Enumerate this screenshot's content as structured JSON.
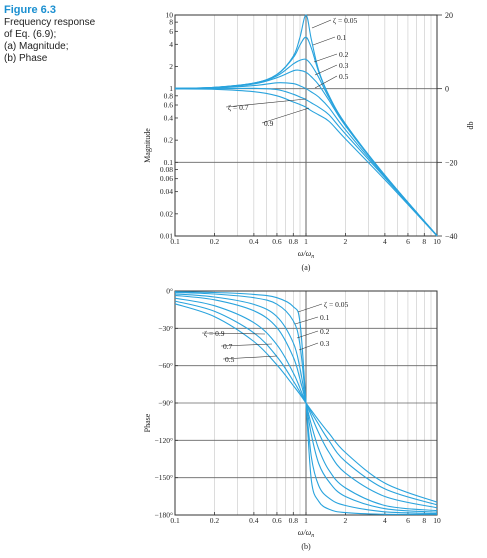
{
  "caption": {
    "figure": "Figure 6.3",
    "lines": [
      "Frequency response",
      "of Eq. (6.9);",
      "(a) Magnitude;",
      "(b) Phase"
    ]
  },
  "colors": {
    "curve": "#29a3dd",
    "grid": "#666666",
    "caption": "#1a8fd0"
  },
  "chart_data": [
    {
      "id": "a",
      "type": "line",
      "panel_label": "(a)",
      "xlabel": "ω/ωn",
      "ylabel": "Magnitude",
      "y2label": "db",
      "xscale": "log",
      "yscale": "log",
      "xlim": [
        0.1,
        10
      ],
      "ylim": [
        0.01,
        10
      ],
      "y2lim": [
        -40,
        20
      ],
      "x_ticks": [
        0.1,
        0.2,
        0.4,
        0.6,
        0.8,
        1,
        2,
        4,
        6,
        8,
        10
      ],
      "x_tick_labels": [
        "0.1",
        "0.2",
        "0.4",
        "0.6",
        "0.8",
        "1",
        "2",
        "4",
        "6",
        "8",
        "10"
      ],
      "y_ticks": [
        0.01,
        0.02,
        0.04,
        0.06,
        0.08,
        0.1,
        0.2,
        0.4,
        0.6,
        0.8,
        1,
        2,
        4,
        6,
        8,
        10
      ],
      "y_tick_labels": [
        "0.01",
        "0.02",
        "0.04",
        "0.06",
        "0.08",
        "0.1",
        "0.2",
        "0.4",
        "0.6",
        "0.8",
        "1",
        "2",
        "4",
        "6",
        "8",
        "10"
      ],
      "y2_ticks": [
        -40,
        -20,
        0,
        20
      ],
      "y2_tick_labels": [
        "−40",
        "−20",
        "0",
        "20"
      ],
      "zeta": [
        0.05,
        0.1,
        0.2,
        0.3,
        0.5,
        0.7,
        0.9
      ],
      "annotations": [
        {
          "text": "ζ = 0.05",
          "zeta": 0.05
        },
        {
          "text": "0.1",
          "zeta": 0.1
        },
        {
          "text": "0.2",
          "zeta": 0.2
        },
        {
          "text": "0.3",
          "zeta": 0.3
        },
        {
          "text": "0.5",
          "zeta": 0.5
        },
        {
          "text": "ζ = 0.7",
          "zeta": 0.7
        },
        {
          "text": "0.9",
          "zeta": 0.9
        }
      ],
      "series": [
        {
          "zeta": 0.05,
          "x": [
            0.1,
            0.2,
            0.4,
            0.6,
            0.8,
            0.9,
            1,
            1.1,
            1.25,
            1.5,
            2,
            4,
            10
          ],
          "y": [
            1.01,
            1.04,
            1.19,
            1.56,
            2.76,
            5.0,
            10.0,
            4.6,
            1.77,
            0.8,
            0.333,
            0.067,
            0.0101
          ]
        },
        {
          "zeta": 0.1,
          "x": [
            0.1,
            0.2,
            0.4,
            0.6,
            0.8,
            0.9,
            1,
            1.1,
            1.25,
            1.5,
            2,
            4,
            10
          ],
          "y": [
            1.01,
            1.04,
            1.19,
            1.55,
            2.64,
            3.91,
            5.0,
            3.53,
            1.69,
            0.79,
            0.331,
            0.066,
            0.0101
          ]
        },
        {
          "zeta": 0.2,
          "x": [
            0.1,
            0.2,
            0.4,
            0.6,
            0.8,
            0.9,
            1,
            1.1,
            1.25,
            1.5,
            2,
            4,
            10
          ],
          "y": [
            1.01,
            1.04,
            1.18,
            1.49,
            2.17,
            2.43,
            2.5,
            2.09,
            1.42,
            0.75,
            0.324,
            0.066,
            0.0101
          ]
        },
        {
          "zeta": 0.3,
          "x": [
            0.1,
            0.2,
            0.4,
            0.6,
            0.8,
            0.9,
            1,
            1.1,
            1.25,
            1.5,
            2,
            4,
            10
          ],
          "y": [
            1.01,
            1.04,
            1.16,
            1.41,
            1.75,
            1.77,
            1.67,
            1.45,
            1.13,
            0.69,
            0.313,
            0.066,
            0.0101
          ]
        },
        {
          "zeta": 0.5,
          "x": [
            0.1,
            0.2,
            0.4,
            0.6,
            0.8,
            0.9,
            1,
            1.1,
            1.25,
            1.5,
            2,
            4,
            10
          ],
          "y": [
            1.0,
            1.02,
            1.1,
            1.2,
            1.17,
            1.09,
            1.0,
            0.9,
            0.77,
            0.55,
            0.277,
            0.064,
            0.0101
          ]
        },
        {
          "zeta": 0.7,
          "x": [
            0.1,
            0.2,
            0.4,
            0.6,
            0.8,
            0.9,
            1,
            1.1,
            1.25,
            1.5,
            2,
            4,
            10
          ],
          "y": [
            1.0,
            1.0,
            1.01,
            0.97,
            0.84,
            0.77,
            0.71,
            0.64,
            0.56,
            0.44,
            0.243,
            0.062,
            0.01
          ]
        },
        {
          "zeta": 0.9,
          "x": [
            0.1,
            0.2,
            0.4,
            0.6,
            0.8,
            0.9,
            1,
            1.1,
            1.25,
            1.5,
            2,
            4,
            10
          ],
          "y": [
            0.99,
            0.98,
            0.91,
            0.8,
            0.66,
            0.61,
            0.56,
            0.5,
            0.44,
            0.36,
            0.208,
            0.058,
            0.01
          ]
        }
      ]
    },
    {
      "id": "b",
      "type": "line",
      "panel_label": "(b)",
      "xlabel": "ω/ωn",
      "ylabel": "Phase",
      "xscale": "log",
      "xlim": [
        0.1,
        10
      ],
      "ylim": [
        -180,
        0
      ],
      "x_ticks": [
        0.1,
        0.2,
        0.4,
        0.6,
        0.8,
        1,
        2,
        4,
        6,
        8,
        10
      ],
      "x_tick_labels": [
        "0.1",
        "0.2",
        "0.4",
        "0.6",
        "0.8",
        "1",
        "2",
        "4",
        "6",
        "8",
        "10"
      ],
      "y_ticks": [
        0,
        -30,
        -60,
        -90,
        -120,
        -150,
        -180
      ],
      "y_tick_labels": [
        "0°",
        "−30°",
        "−60°",
        "−90°",
        "−120°",
        "−150°",
        "−180°"
      ],
      "zeta": [
        0.05,
        0.1,
        0.2,
        0.3,
        0.5,
        0.7,
        0.9
      ],
      "annotations": [
        {
          "text": "ζ = 0.05",
          "zeta": 0.05
        },
        {
          "text": "0.1",
          "zeta": 0.1
        },
        {
          "text": "0.2",
          "zeta": 0.2
        },
        {
          "text": "0.3",
          "zeta": 0.3
        },
        {
          "text": "ζ = 0.9",
          "zeta": 0.9
        },
        {
          "text": "0.7",
          "zeta": 0.7
        },
        {
          "text": "0.5",
          "zeta": 0.5
        }
      ],
      "series": [
        {
          "zeta": 0.05,
          "x": [
            0.1,
            0.2,
            0.4,
            0.6,
            0.8,
            0.9,
            1,
            1.1,
            1.25,
            1.5,
            2,
            4,
            10
          ],
          "y": [
            -0.6,
            -1.2,
            -2.7,
            -5.4,
            -12.5,
            -25.3,
            -90,
            -152.4,
            -169.0,
            -175.4,
            -178.1,
            -179.4,
            -179.4
          ]
        },
        {
          "zeta": 0.1,
          "x": [
            0.1,
            0.2,
            0.4,
            0.6,
            0.8,
            0.9,
            1,
            1.1,
            1.25,
            1.5,
            2,
            4,
            10
          ],
          "y": [
            -1.2,
            -2.4,
            -5.4,
            -10.6,
            -24.0,
            -43.5,
            -90,
            -133.6,
            -156.4,
            -166.5,
            -172.4,
            -177.4,
            -178.8
          ]
        },
        {
          "zeta": 0.2,
          "x": [
            0.1,
            0.2,
            0.4,
            0.6,
            0.8,
            0.9,
            1,
            1.1,
            1.25,
            1.5,
            2,
            4,
            10
          ],
          "y": [
            -2.3,
            -4.8,
            -10.8,
            -20.6,
            -41.6,
            -62.2,
            -90,
            -115.6,
            -138.6,
            -153.4,
            -165.1,
            -174.9,
            -177.7
          ]
        },
        {
          "zeta": 0.3,
          "x": [
            0.1,
            0.2,
            0.4,
            0.6,
            0.8,
            0.9,
            1,
            1.1,
            1.25,
            1.5,
            2,
            4,
            10
          ],
          "y": [
            -3.5,
            -7.1,
            -15.9,
            -29.4,
            -53.1,
            -70.9,
            -90,
            -107.7,
            -126.9,
            -144.2,
            -158.2,
            -172.4,
            -176.5
          ]
        },
        {
          "zeta": 0.5,
          "x": [
            0.1,
            0.2,
            0.4,
            0.6,
            0.8,
            0.9,
            1,
            1.1,
            1.25,
            1.5,
            2,
            4,
            10
          ],
          "y": [
            -5.8,
            -11.8,
            -25.5,
            -43.2,
            -65.8,
            -78.2,
            -90,
            -100.4,
            -114.0,
            -129.8,
            -146.3,
            -165.1,
            -174.2
          ]
        },
        {
          "zeta": 0.7,
          "x": [
            0.1,
            0.2,
            0.4,
            0.6,
            0.8,
            0.9,
            1,
            1.1,
            1.25,
            1.5,
            2,
            4,
            10
          ],
          "y": [
            -8.1,
            -16.3,
            -33.7,
            -52.7,
            -72.3,
            -81.3,
            -90,
            -97.6,
            -107.3,
            -120.4,
            -136.9,
            -159.0,
            -171.9
          ]
        },
        {
          "zeta": 0.9,
          "x": [
            0.1,
            0.2,
            0.4,
            0.6,
            0.8,
            0.9,
            1,
            1.1,
            1.25,
            1.5,
            2,
            4,
            10
          ],
          "y": [
            -10.3,
            -20.6,
            -40.6,
            -59.4,
            -76.0,
            -83.1,
            -90,
            -96.0,
            -103.9,
            -114.4,
            -129.8,
            -154.4,
            -169.7
          ]
        }
      ]
    }
  ]
}
